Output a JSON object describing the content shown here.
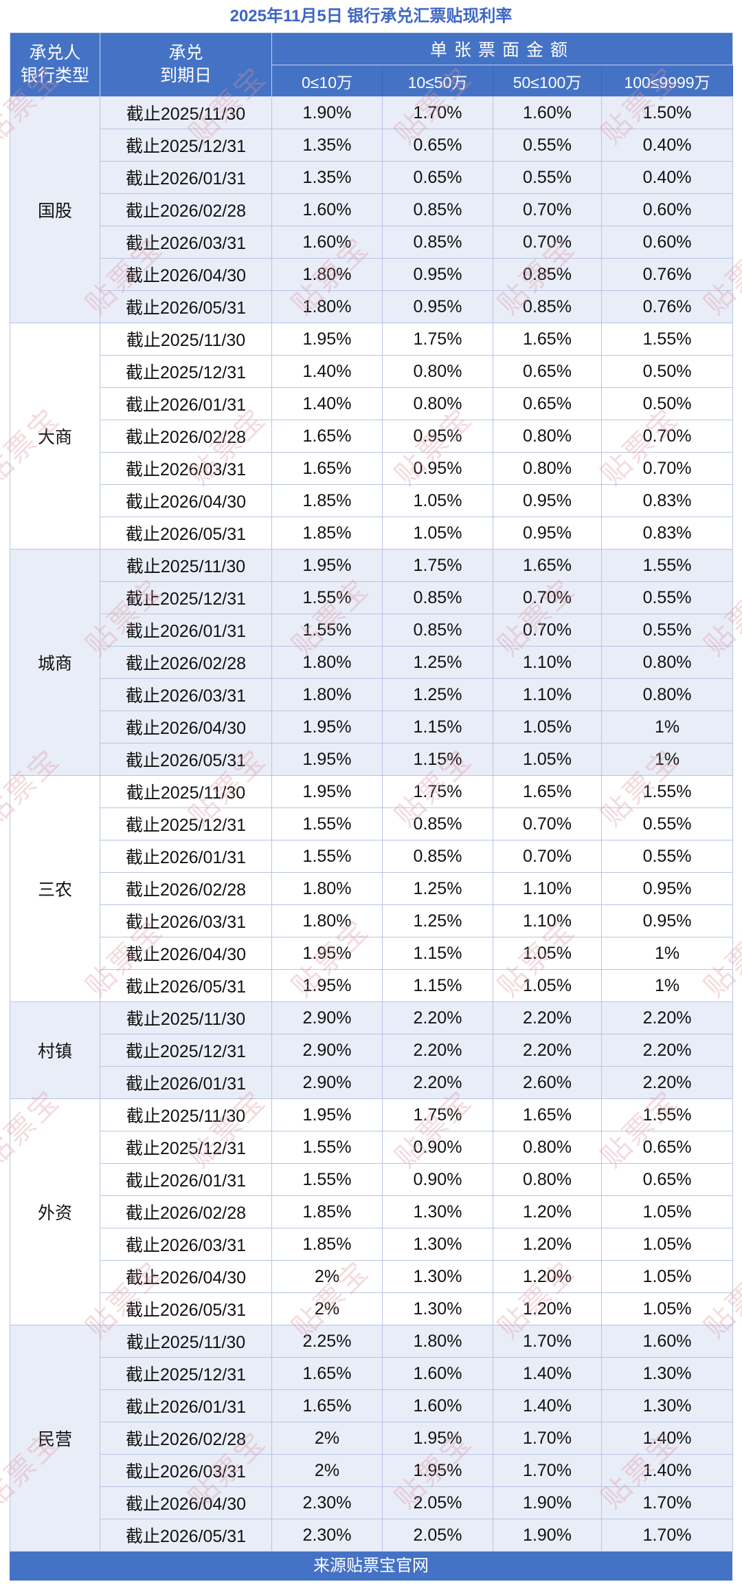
{
  "title": "2025年11月5日 银行承兑汇票贴现利率",
  "footer": "来源贴票宝官网",
  "watermark": {
    "text": "贴票宝"
  },
  "colors": {
    "header_blue": "#4472C4",
    "section_alt_bg": "#E9EDF8",
    "title_blue": "#3D66C4",
    "watermark_pink": "#DE95A0"
  },
  "header": {
    "col1": [
      "承兑人",
      "银行类型"
    ],
    "col2": [
      "承兑",
      "到期日"
    ],
    "amount_group": "单张票面金额",
    "amount_cols": [
      "0≤10万",
      "10≤50万",
      "50≤100万",
      "100≤9999万"
    ]
  },
  "sections": [
    {
      "bank": "国股",
      "rows": [
        {
          "date": "截止2025/11/30",
          "rates": [
            "1.90%",
            "1.70%",
            "1.60%",
            "1.50%"
          ]
        },
        {
          "date": "截止2025/12/31",
          "rates": [
            "1.35%",
            "0.65%",
            "0.55%",
            "0.40%"
          ]
        },
        {
          "date": "截止2026/01/31",
          "rates": [
            "1.35%",
            "0.65%",
            "0.55%",
            "0.40%"
          ]
        },
        {
          "date": "截止2026/02/28",
          "rates": [
            "1.60%",
            "0.85%",
            "0.70%",
            "0.60%"
          ]
        },
        {
          "date": "截止2026/03/31",
          "rates": [
            "1.60%",
            "0.85%",
            "0.70%",
            "0.60%"
          ]
        },
        {
          "date": "截止2026/04/30",
          "rates": [
            "1.80%",
            "0.95%",
            "0.85%",
            "0.76%"
          ]
        },
        {
          "date": "截止2026/05/31",
          "rates": [
            "1.80%",
            "0.95%",
            "0.85%",
            "0.76%"
          ]
        }
      ]
    },
    {
      "bank": "大商",
      "rows": [
        {
          "date": "截止2025/11/30",
          "rates": [
            "1.95%",
            "1.75%",
            "1.65%",
            "1.55%"
          ]
        },
        {
          "date": "截止2025/12/31",
          "rates": [
            "1.40%",
            "0.80%",
            "0.65%",
            "0.50%"
          ]
        },
        {
          "date": "截止2026/01/31",
          "rates": [
            "1.40%",
            "0.80%",
            "0.65%",
            "0.50%"
          ]
        },
        {
          "date": "截止2026/02/28",
          "rates": [
            "1.65%",
            "0.95%",
            "0.80%",
            "0.70%"
          ]
        },
        {
          "date": "截止2026/03/31",
          "rates": [
            "1.65%",
            "0.95%",
            "0.80%",
            "0.70%"
          ]
        },
        {
          "date": "截止2026/04/30",
          "rates": [
            "1.85%",
            "1.05%",
            "0.95%",
            "0.83%"
          ]
        },
        {
          "date": "截止2026/05/31",
          "rates": [
            "1.85%",
            "1.05%",
            "0.95%",
            "0.83%"
          ]
        }
      ]
    },
    {
      "bank": "城商",
      "rows": [
        {
          "date": "截止2025/11/30",
          "rates": [
            "1.95%",
            "1.75%",
            "1.65%",
            "1.55%"
          ]
        },
        {
          "date": "截止2025/12/31",
          "rates": [
            "1.55%",
            "0.85%",
            "0.70%",
            "0.55%"
          ]
        },
        {
          "date": "截止2026/01/31",
          "rates": [
            "1.55%",
            "0.85%",
            "0.70%",
            "0.55%"
          ]
        },
        {
          "date": "截止2026/02/28",
          "rates": [
            "1.80%",
            "1.25%",
            "1.10%",
            "0.80%"
          ]
        },
        {
          "date": "截止2026/03/31",
          "rates": [
            "1.80%",
            "1.25%",
            "1.10%",
            "0.80%"
          ]
        },
        {
          "date": "截止2026/04/30",
          "rates": [
            "1.95%",
            "1.15%",
            "1.05%",
            "1%"
          ]
        },
        {
          "date": "截止2026/05/31",
          "rates": [
            "1.95%",
            "1.15%",
            "1.05%",
            "1%"
          ]
        }
      ]
    },
    {
      "bank": "三农",
      "rows": [
        {
          "date": "截止2025/11/30",
          "rates": [
            "1.95%",
            "1.75%",
            "1.65%",
            "1.55%"
          ]
        },
        {
          "date": "截止2025/12/31",
          "rates": [
            "1.55%",
            "0.85%",
            "0.70%",
            "0.55%"
          ]
        },
        {
          "date": "截止2026/01/31",
          "rates": [
            "1.55%",
            "0.85%",
            "0.70%",
            "0.55%"
          ]
        },
        {
          "date": "截止2026/02/28",
          "rates": [
            "1.80%",
            "1.25%",
            "1.10%",
            "0.95%"
          ]
        },
        {
          "date": "截止2026/03/31",
          "rates": [
            "1.80%",
            "1.25%",
            "1.10%",
            "0.95%"
          ]
        },
        {
          "date": "截止2026/04/30",
          "rates": [
            "1.95%",
            "1.15%",
            "1.05%",
            "1%"
          ]
        },
        {
          "date": "截止2026/05/31",
          "rates": [
            "1.95%",
            "1.15%",
            "1.05%",
            "1%"
          ]
        }
      ]
    },
    {
      "bank": "村镇",
      "rows": [
        {
          "date": "截止2025/11/30",
          "rates": [
            "2.90%",
            "2.20%",
            "2.20%",
            "2.20%"
          ]
        },
        {
          "date": "截止2025/12/31",
          "rates": [
            "2.90%",
            "2.20%",
            "2.20%",
            "2.20%"
          ]
        },
        {
          "date": "截止2026/01/31",
          "rates": [
            "2.90%",
            "2.20%",
            "2.60%",
            "2.20%"
          ]
        }
      ]
    },
    {
      "bank": "外资",
      "rows": [
        {
          "date": "截止2025/11/30",
          "rates": [
            "1.95%",
            "1.75%",
            "1.65%",
            "1.55%"
          ]
        },
        {
          "date": "截止2025/12/31",
          "rates": [
            "1.55%",
            "0.90%",
            "0.80%",
            "0.65%"
          ]
        },
        {
          "date": "截止2026/01/31",
          "rates": [
            "1.55%",
            "0.90%",
            "0.80%",
            "0.65%"
          ]
        },
        {
          "date": "截止2026/02/28",
          "rates": [
            "1.85%",
            "1.30%",
            "1.20%",
            "1.05%"
          ]
        },
        {
          "date": "截止2026/03/31",
          "rates": [
            "1.85%",
            "1.30%",
            "1.20%",
            "1.05%"
          ]
        },
        {
          "date": "截止2026/04/30",
          "rates": [
            "2%",
            "1.30%",
            "1.20%",
            "1.05%"
          ]
        },
        {
          "date": "截止2026/05/31",
          "rates": [
            "2%",
            "1.30%",
            "1.20%",
            "1.05%"
          ]
        }
      ]
    },
    {
      "bank": "民营",
      "rows": [
        {
          "date": "截止2025/11/30",
          "rates": [
            "2.25%",
            "1.80%",
            "1.70%",
            "1.60%"
          ]
        },
        {
          "date": "截止2025/12/31",
          "rates": [
            "1.65%",
            "1.60%",
            "1.40%",
            "1.30%"
          ]
        },
        {
          "date": "截止2026/01/31",
          "rates": [
            "1.65%",
            "1.60%",
            "1.40%",
            "1.30%"
          ]
        },
        {
          "date": "截止2026/02/28",
          "rates": [
            "2%",
            "1.95%",
            "1.70%",
            "1.40%"
          ]
        },
        {
          "date": "截止2026/03/31",
          "rates": [
            "2%",
            "1.95%",
            "1.70%",
            "1.40%"
          ]
        },
        {
          "date": "截止2026/04/30",
          "rates": [
            "2.30%",
            "2.05%",
            "1.90%",
            "1.70%"
          ]
        },
        {
          "date": "截止2026/05/31",
          "rates": [
            "2.30%",
            "2.05%",
            "1.90%",
            "1.70%"
          ]
        }
      ]
    }
  ]
}
